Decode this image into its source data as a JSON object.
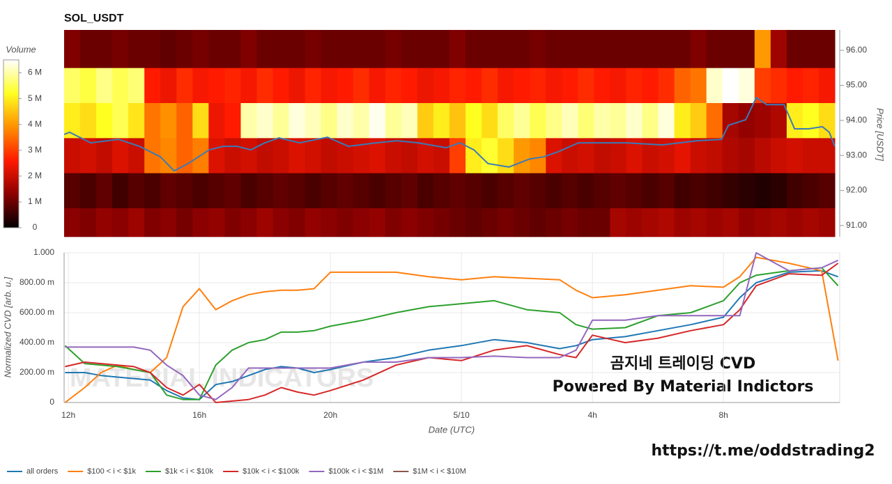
{
  "chart_data": [
    {
      "type": "heatmap",
      "title": "SOL_USDT",
      "xlim": [
        11.87,
        35.4
      ],
      "ylim": [
        90.68,
        96.58
      ],
      "ylabel": "Price [USDT]",
      "yticks": [
        {
          "value": 91,
          "label": "91.00"
        },
        {
          "value": 92,
          "label": "92.00"
        },
        {
          "value": 93,
          "label": "93.00"
        },
        {
          "value": 94,
          "label": "94.00"
        },
        {
          "value": 95,
          "label": "95.00"
        },
        {
          "value": 96,
          "label": "96.00"
        }
      ],
      "y_bins": [
        90.68,
        91.5,
        92.5,
        93.5,
        94.5,
        95.5,
        96.58
      ],
      "zlim": [
        0,
        6.5
      ],
      "zlabel": "Volume",
      "zticks": [
        0,
        {
          "value": 1,
          "label": "1 M"
        },
        {
          "value": 2,
          "label": "2 M"
        },
        {
          "value": 3,
          "label": "3 M"
        },
        {
          "value": 4,
          "label": "4 M"
        },
        {
          "value": 5,
          "label": "5 M"
        },
        {
          "value": 6,
          "label": "6 M"
        }
      ],
      "colormap": [
        "#000000",
        "#8b0000",
        "#ff1a00",
        "#ff9000",
        "#ffff20",
        "#ffffff"
      ],
      "values": [
        [
          1.3,
          1.2,
          1.4,
          1.3,
          1.5,
          1.2,
          1.3,
          1.1,
          1.3,
          1.4,
          1.2,
          1.3,
          1.5,
          1.3,
          1.2,
          1.4,
          1.3,
          1.2,
          1.3,
          1.4,
          1.2,
          1.3,
          1.2,
          1.1,
          1.0,
          0.9,
          1.0,
          1.1,
          1.0,
          0.9,
          1.0,
          1.1,
          1.0,
          1.0,
          1.6,
          1.5,
          1.6,
          1.7,
          1.5,
          1.6,
          1.5,
          1.6,
          1.4,
          1.5,
          1.6,
          1.5,
          1.6,
          1.5
        ],
        [
          0.8,
          0.7,
          0.9,
          0.6,
          0.8,
          0.7,
          0.9,
          0.8,
          0.7,
          0.8,
          0.9,
          0.7,
          0.8,
          0.9,
          0.8,
          0.7,
          0.8,
          0.9,
          0.8,
          0.7,
          0.8,
          0.9,
          0.7,
          0.8,
          0.9,
          0.8,
          0.7,
          0.8,
          0.9,
          0.8,
          0.7,
          0.8,
          0.7,
          0.8,
          0.9,
          0.8,
          0.7,
          0.8,
          0.6,
          0.7,
          0.6,
          0.5,
          0.4,
          0.3,
          0.4,
          0.6,
          0.7,
          0.8
        ],
        [
          2.0,
          2.1,
          1.9,
          2.2,
          2.0,
          3.6,
          3.8,
          3.4,
          3.7,
          2.2,
          2.0,
          2.1,
          1.9,
          2.0,
          2.2,
          2.1,
          1.9,
          2.0,
          2.1,
          2.2,
          2.0,
          1.9,
          2.1,
          2.0,
          3.0,
          5.0,
          5.3,
          4.8,
          4.0,
          3.8,
          2.2,
          2.0,
          2.1,
          1.9,
          2.0,
          2.2,
          2.0,
          2.1,
          2.3,
          2.0,
          1.9,
          1.7,
          1.6,
          1.8,
          2.0,
          2.1,
          2.0,
          2.0
        ],
        [
          5.0,
          4.8,
          5.2,
          5.5,
          4.9,
          3.6,
          3.9,
          3.4,
          4.8,
          2.4,
          2.6,
          6.0,
          6.2,
          5.9,
          6.3,
          6.1,
          5.8,
          6.2,
          6.0,
          6.4,
          5.9,
          6.1,
          4.6,
          5.0,
          4.5,
          5.2,
          4.8,
          5.6,
          5.9,
          5.5,
          5.8,
          6.1,
          5.7,
          6.0,
          5.9,
          6.2,
          5.8,
          6.3,
          5.0,
          4.6,
          3.5,
          1.6,
          1.4,
          1.5,
          1.7,
          5.0,
          5.2,
          4.8
        ],
        [
          5.6,
          5.4,
          5.8,
          5.5,
          5.7,
          2.6,
          2.4,
          2.8,
          2.5,
          2.6,
          2.7,
          2.5,
          2.8,
          2.6,
          2.4,
          2.7,
          2.5,
          2.6,
          2.8,
          2.5,
          2.7,
          2.6,
          2.4,
          2.5,
          2.7,
          2.6,
          2.8,
          2.5,
          2.6,
          2.7,
          2.5,
          2.6,
          2.8,
          2.6,
          2.5,
          2.7,
          2.6,
          2.8,
          3.4,
          3.6,
          6.2,
          6.5,
          6.3,
          3.0,
          2.8,
          2.6,
          2.7,
          2.5
        ],
        [
          1.2,
          1.0,
          1.0,
          1.1,
          1.0,
          1.0,
          0.9,
          1.0,
          1.1,
          1.0,
          1.0,
          1.2,
          1.0,
          1.0,
          1.0,
          1.1,
          1.0,
          1.0,
          1.0,
          1.0,
          1.1,
          1.0,
          1.0,
          1.0,
          1.2,
          1.0,
          1.0,
          1.0,
          1.0,
          1.1,
          1.0,
          1.0,
          1.0,
          1.0,
          1.0,
          1.0,
          1.0,
          1.0,
          1.0,
          1.2,
          1.0,
          1.0,
          1.0,
          4.0,
          1.5,
          1.0,
          1.0,
          1.0
        ]
      ],
      "line": {
        "color": "#3a7ab8",
        "x": [
          11.87,
          12.04,
          12.68,
          13.53,
          14.17,
          14.81,
          15.23,
          15.66,
          16.3,
          16.72,
          17.15,
          17.57,
          18.0,
          18.43,
          19.06,
          19.91,
          20.55,
          21.4,
          22.04,
          22.68,
          23.53,
          23.96,
          24.38,
          24.81,
          25.45,
          26.09,
          26.51,
          26.94,
          27.57,
          28.21,
          29.06,
          30.13,
          31.19,
          31.94,
          32.15,
          32.68,
          33.0,
          33.32,
          33.85,
          34.17,
          34.6,
          35.02,
          35.23,
          35.4
        ],
        "values": [
          93.6,
          93.66,
          93.36,
          93.46,
          93.26,
          92.96,
          92.56,
          92.77,
          93.16,
          93.26,
          93.26,
          93.16,
          93.36,
          93.5,
          93.36,
          93.52,
          93.26,
          93.36,
          93.42,
          93.36,
          93.22,
          93.36,
          93.16,
          92.77,
          92.67,
          92.9,
          92.96,
          93.1,
          93.36,
          93.36,
          93.36,
          93.3,
          93.42,
          93.46,
          93.86,
          94.02,
          94.65,
          94.45,
          94.45,
          93.76,
          93.76,
          93.82,
          93.66,
          93.26
        ]
      }
    },
    {
      "type": "line",
      "xlabel": "Date (UTC)",
      "ylabel": "Normalized CVD [arb. u.]",
      "watermark": "MATERIAL INDICATORS",
      "xlim": [
        11.87,
        35.55
      ],
      "ylim": [
        0,
        1
      ],
      "grid": true,
      "xticks": [
        {
          "value": 12,
          "label": "12h"
        },
        {
          "value": 16,
          "label": "16h"
        },
        {
          "value": 20,
          "label": "20h"
        },
        {
          "value": 24,
          "label": "5/10"
        },
        {
          "value": 28,
          "label": "4h"
        },
        {
          "value": 32,
          "label": "8h"
        }
      ],
      "yticks": [
        0,
        {
          "value": 0.2,
          "label": "200.00 m"
        },
        {
          "value": 0.4,
          "label": "400.00 m"
        },
        {
          "value": 0.6,
          "label": "600.00 m"
        },
        {
          "value": 0.8,
          "label": "800.00 m"
        },
        {
          "value": 1,
          "label": "1.000"
        }
      ],
      "x": [
        11.9,
        12.5,
        13,
        13.5,
        14,
        14.5,
        15,
        15.5,
        16,
        16.5,
        17,
        17.5,
        18,
        18.5,
        19,
        19.5,
        20,
        21,
        22,
        23,
        24,
        25,
        26,
        27,
        27.5,
        28,
        29,
        30,
        31,
        32,
        32.5,
        33,
        34,
        35,
        35.5
      ],
      "series": [
        {
          "name": "all orders",
          "color": "#1f77b4",
          "values": [
            0.2,
            0.2,
            0.18,
            0.17,
            0.16,
            0.15,
            0.08,
            0.03,
            0.02,
            0.12,
            0.14,
            0.18,
            0.22,
            0.24,
            0.23,
            0.2,
            0.22,
            0.27,
            0.3,
            0.35,
            0.38,
            0.42,
            0.4,
            0.36,
            0.38,
            0.42,
            0.44,
            0.48,
            0.52,
            0.57,
            0.7,
            0.8,
            0.87,
            0.88,
            0.84
          ]
        },
        {
          "name": "$100 < i < $1k",
          "color": "#ff7f0e",
          "values": [
            0,
            0.1,
            0.2,
            0.25,
            0.22,
            0.2,
            0.3,
            0.64,
            0.76,
            0.62,
            0.68,
            0.72,
            0.74,
            0.75,
            0.75,
            0.76,
            0.87,
            0.87,
            0.87,
            0.84,
            0.82,
            0.84,
            0.83,
            0.82,
            0.75,
            0.7,
            0.72,
            0.75,
            0.78,
            0.77,
            0.84,
            0.97,
            0.93,
            0.88,
            0.28
          ]
        },
        {
          "name": "$1k < i < $10k",
          "color": "#2ca02c",
          "values": [
            0.38,
            0.26,
            0.25,
            0.24,
            0.22,
            0.2,
            0.05,
            0.02,
            0.02,
            0.25,
            0.35,
            0.4,
            0.42,
            0.47,
            0.47,
            0.48,
            0.51,
            0.55,
            0.6,
            0.64,
            0.66,
            0.68,
            0.62,
            0.6,
            0.52,
            0.49,
            0.5,
            0.58,
            0.6,
            0.68,
            0.8,
            0.85,
            0.88,
            0.9,
            0.78
          ]
        },
        {
          "name": "$10k < i < $100k",
          "color": "#d62728",
          "values": [
            0.24,
            0.27,
            0.26,
            0.25,
            0.24,
            0.2,
            0.1,
            0.05,
            0.12,
            0,
            0.01,
            0.02,
            0.05,
            0.1,
            0.07,
            0.05,
            0.08,
            0.15,
            0.25,
            0.3,
            0.28,
            0.35,
            0.38,
            0.32,
            0.3,
            0.45,
            0.4,
            0.43,
            0.48,
            0.52,
            0.62,
            0.78,
            0.86,
            0.85,
            0.93
          ]
        },
        {
          "name": "$100k < i < $1M",
          "color": "#9467bd",
          "values": [
            0.37,
            0.37,
            0.37,
            0.37,
            0.37,
            0.35,
            0.25,
            0.18,
            0.05,
            0.02,
            0.1,
            0.23,
            0.23,
            0.23,
            0.23,
            0.23,
            0.23,
            0.27,
            0.27,
            0.3,
            0.3,
            0.31,
            0.3,
            0.3,
            0.35,
            0.55,
            0.55,
            0.58,
            0.58,
            0.58,
            0.58,
            1,
            0.88,
            0.9,
            0.95
          ]
        },
        {
          "name": "$1M < i < $10M",
          "color": "#8c564b",
          "values": [
            null,
            null,
            null,
            null,
            null,
            null,
            null,
            null,
            null,
            null,
            null,
            null,
            null,
            null,
            null,
            null,
            null,
            null,
            null,
            null,
            null,
            null,
            null,
            null,
            null,
            null,
            null,
            null,
            null,
            null,
            null,
            null,
            null,
            null,
            null
          ]
        }
      ]
    }
  ],
  "annotations": [
    "곰지네 트레이딩 CVD",
    "Powered By Material Indictors",
    "https://t.me/oddstrading2"
  ]
}
